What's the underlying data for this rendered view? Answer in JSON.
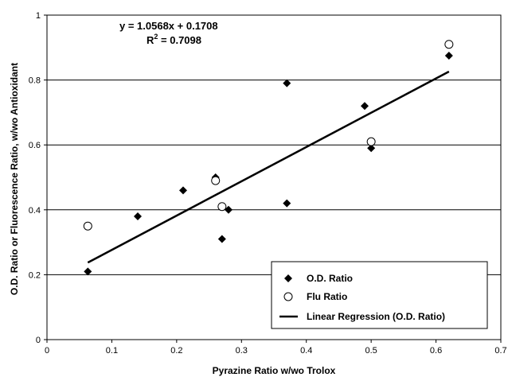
{
  "chart_data": {
    "type": "scatter",
    "xlabel": "Pyrazine Ratio w/wo Trolox",
    "ylabel": "O.D. Ratio or Fluorescence Ratio, w/wo Antioxidant",
    "xlim": [
      0,
      0.7
    ],
    "ylim": [
      0,
      1
    ],
    "x_ticks": [
      "0",
      "0.1",
      "0.2",
      "0.3",
      "0.4",
      "0.5",
      "0.6",
      "0.7"
    ],
    "y_ticks": [
      "0",
      "0.2",
      "0.4",
      "0.6",
      "0.8",
      "1"
    ],
    "grid": "horizontal",
    "legend_position": "bottom-right",
    "annotations": {
      "equation": "y = 1.0568x + 0.1708",
      "r2_prefix": "R",
      "r2_sup": "2",
      "r2_value": " = 0.7098"
    },
    "series": [
      {
        "name": "O.D. Ratio",
        "marker": "diamond",
        "points": [
          [
            0.063,
            0.21
          ],
          [
            0.14,
            0.38
          ],
          [
            0.21,
            0.46
          ],
          [
            0.26,
            0.5
          ],
          [
            0.27,
            0.31
          ],
          [
            0.28,
            0.4
          ],
          [
            0.37,
            0.79
          ],
          [
            0.37,
            0.42
          ],
          [
            0.49,
            0.72
          ],
          [
            0.5,
            0.59
          ],
          [
            0.62,
            0.875
          ]
        ]
      },
      {
        "name": "Flu Ratio",
        "marker": "open-circle",
        "points": [
          [
            0.063,
            0.35
          ],
          [
            0.26,
            0.49
          ],
          [
            0.27,
            0.41
          ],
          [
            0.5,
            0.61
          ],
          [
            0.62,
            0.91
          ]
        ]
      },
      {
        "name": "Linear Regression (O.D. Ratio)",
        "marker": "line",
        "slope": 1.0568,
        "intercept": 0.1708,
        "x_range": [
          0.063,
          0.62
        ]
      }
    ]
  }
}
